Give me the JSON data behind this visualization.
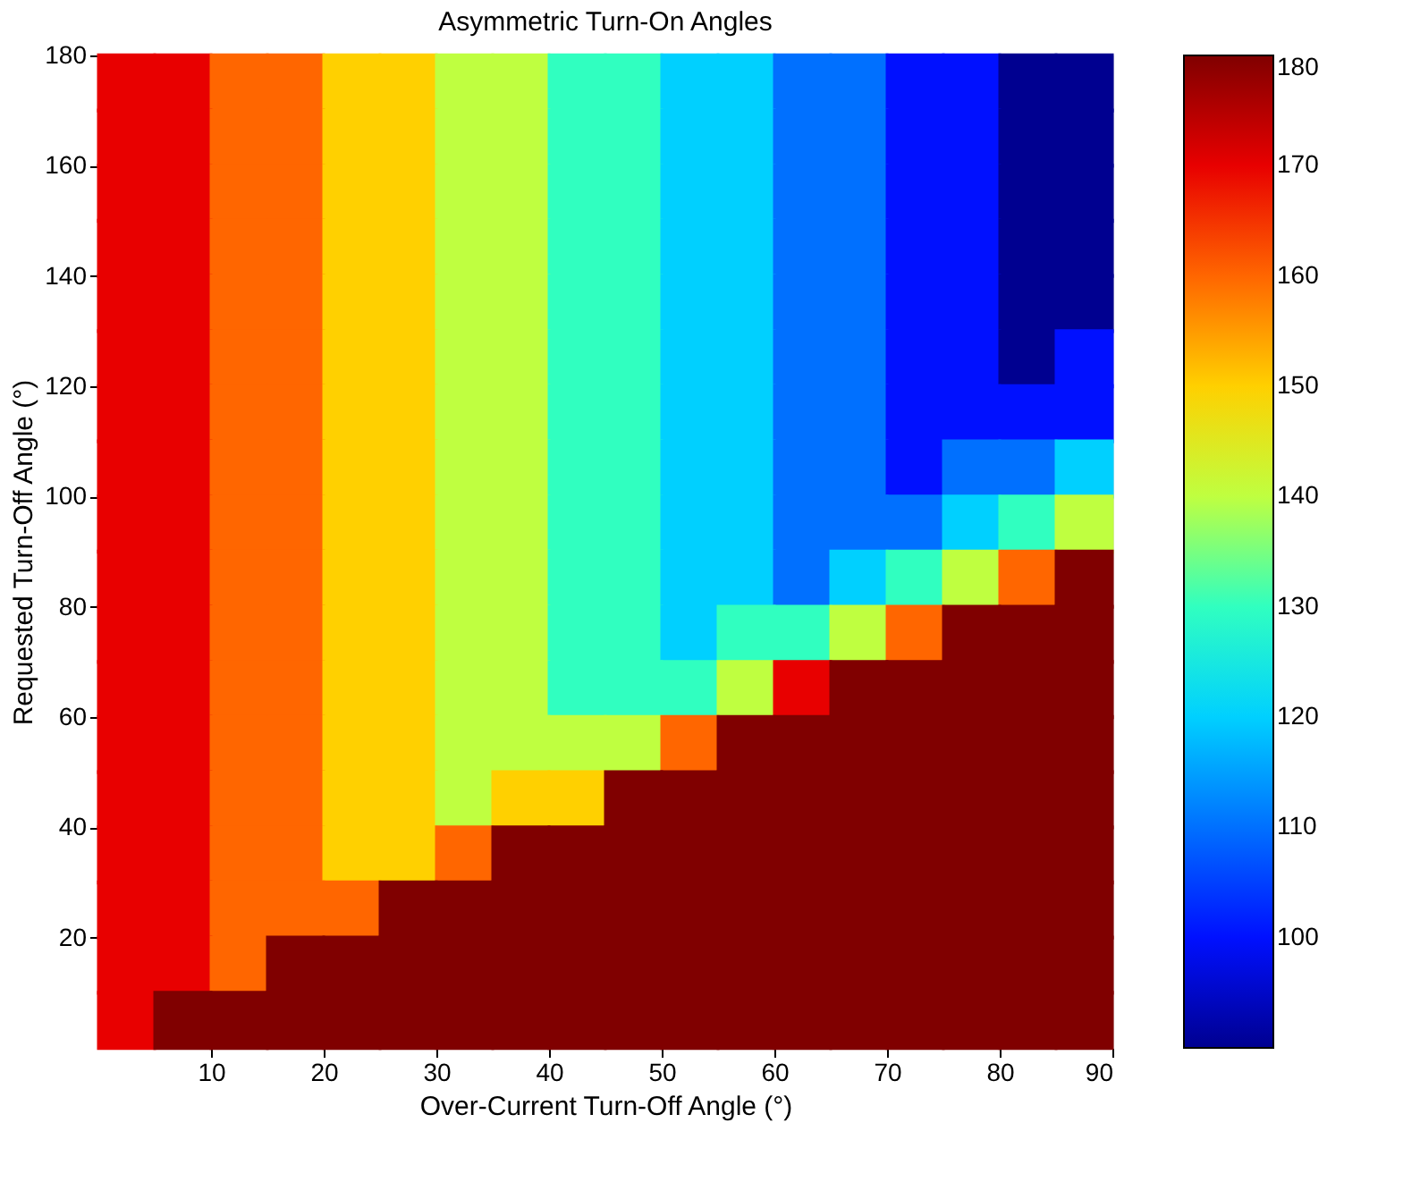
{
  "chart_data": {
    "type": "scatter",
    "title": "Asymmetric Turn-On Angles",
    "xlabel": "Over-Current Turn-Off Angle (°)",
    "ylabel": "Requested Turn-Off Angle (°)",
    "x": [
      2.5,
      7.5,
      12.5,
      17.5,
      22.5,
      27.5,
      32.5,
      37.5,
      42.5,
      47.5,
      52.5,
      57.5,
      62.5,
      67.5,
      72.5,
      77.5,
      82.5,
      87.5
    ],
    "marker": "square",
    "series": [
      {
        "values": [
          175,
          175,
          175,
          175,
          175,
          175,
          175,
          175,
          175,
          175,
          175,
          175,
          175,
          175,
          175,
          175,
          175,
          175
        ],
        "cvalues": [
          170,
          170,
          160,
          160,
          150,
          150,
          140,
          140,
          130,
          130,
          120,
          120,
          110,
          110,
          100,
          100,
          90,
          90
        ],
        "colors": [
          "#e80000",
          "#e80000",
          "#ff6600",
          "#ff6600",
          "#ffd000",
          "#ffd000",
          "#bfff40",
          "#bfff40",
          "#30ffc0",
          "#30ffc0",
          "#00d0ff",
          "#00d0ff",
          "#0070ff",
          "#0070ff",
          "#0010ff",
          "#0010ff",
          "#000090",
          "#000090"
        ]
      },
      {
        "values": [
          165,
          165,
          165,
          165,
          165,
          165,
          165,
          165,
          165,
          165,
          165,
          165,
          165,
          165,
          165,
          165,
          165,
          165
        ],
        "cvalues": [
          170,
          170,
          160,
          160,
          150,
          150,
          140,
          140,
          130,
          130,
          120,
          120,
          110,
          110,
          100,
          100,
          90,
          90
        ],
        "colors": [
          "#e80000",
          "#e80000",
          "#ff6600",
          "#ff6600",
          "#ffd000",
          "#ffd000",
          "#bfff40",
          "#bfff40",
          "#30ffc0",
          "#30ffc0",
          "#00d0ff",
          "#00d0ff",
          "#0070ff",
          "#0070ff",
          "#0010ff",
          "#0010ff",
          "#000090",
          "#000090"
        ]
      },
      {
        "values": [
          155,
          155,
          155,
          155,
          155,
          155,
          155,
          155,
          155,
          155,
          155,
          155,
          155,
          155,
          155,
          155,
          155,
          155
        ],
        "cvalues": [
          170,
          170,
          160,
          160,
          150,
          150,
          140,
          140,
          130,
          130,
          120,
          120,
          110,
          110,
          100,
          100,
          90,
          90
        ],
        "colors": [
          "#e80000",
          "#e80000",
          "#ff6600",
          "#ff6600",
          "#ffd000",
          "#ffd000",
          "#bfff40",
          "#bfff40",
          "#30ffc0",
          "#30ffc0",
          "#00d0ff",
          "#00d0ff",
          "#0070ff",
          "#0070ff",
          "#0010ff",
          "#0010ff",
          "#000090",
          "#000090"
        ]
      },
      {
        "values": [
          145,
          145,
          145,
          145,
          145,
          145,
          145,
          145,
          145,
          145,
          145,
          145,
          145,
          145,
          145,
          145,
          145,
          145
        ],
        "cvalues": [
          170,
          170,
          160,
          160,
          150,
          150,
          140,
          140,
          130,
          130,
          120,
          120,
          110,
          110,
          100,
          100,
          90,
          90
        ],
        "colors": [
          "#e80000",
          "#e80000",
          "#ff6600",
          "#ff6600",
          "#ffd000",
          "#ffd000",
          "#bfff40",
          "#bfff40",
          "#30ffc0",
          "#30ffc0",
          "#00d0ff",
          "#00d0ff",
          "#0070ff",
          "#0070ff",
          "#0010ff",
          "#0010ff",
          "#000090",
          "#000090"
        ]
      },
      {
        "values": [
          135,
          135,
          135,
          135,
          135,
          135,
          135,
          135,
          135,
          135,
          135,
          135,
          135,
          135,
          135,
          135,
          135,
          135
        ],
        "cvalues": [
          170,
          170,
          160,
          160,
          150,
          150,
          140,
          140,
          130,
          130,
          120,
          120,
          110,
          110,
          100,
          100,
          90,
          90
        ],
        "colors": [
          "#e80000",
          "#e80000",
          "#ff6600",
          "#ff6600",
          "#ffd000",
          "#ffd000",
          "#bfff40",
          "#bfff40",
          "#30ffc0",
          "#30ffc0",
          "#00d0ff",
          "#00d0ff",
          "#0070ff",
          "#0070ff",
          "#0010ff",
          "#0010ff",
          "#000090",
          "#000090"
        ]
      },
      {
        "values": [
          125,
          125,
          125,
          125,
          125,
          125,
          125,
          125,
          125,
          125,
          125,
          125,
          125,
          125,
          125,
          125,
          125,
          125
        ],
        "cvalues": [
          170,
          170,
          160,
          160,
          150,
          150,
          140,
          140,
          130,
          130,
          120,
          120,
          110,
          110,
          100,
          100,
          90,
          100
        ],
        "colors": [
          "#e80000",
          "#e80000",
          "#ff6600",
          "#ff6600",
          "#ffd000",
          "#ffd000",
          "#bfff40",
          "#bfff40",
          "#30ffc0",
          "#30ffc0",
          "#00d0ff",
          "#00d0ff",
          "#0070ff",
          "#0070ff",
          "#0010ff",
          "#0010ff",
          "#000090",
          "#0010ff"
        ]
      },
      {
        "values": [
          115,
          115,
          115,
          115,
          115,
          115,
          115,
          115,
          115,
          115,
          115,
          115,
          115,
          115,
          115,
          115,
          115,
          115
        ],
        "cvalues": [
          170,
          170,
          160,
          160,
          150,
          150,
          140,
          140,
          130,
          130,
          120,
          120,
          110,
          110,
          100,
          100,
          100,
          100
        ],
        "colors": [
          "#e80000",
          "#e80000",
          "#ff6600",
          "#ff6600",
          "#ffd000",
          "#ffd000",
          "#bfff40",
          "#bfff40",
          "#30ffc0",
          "#30ffc0",
          "#00d0ff",
          "#00d0ff",
          "#0070ff",
          "#0070ff",
          "#0010ff",
          "#0010ff",
          "#0010ff",
          "#0010ff"
        ]
      },
      {
        "values": [
          105,
          105,
          105,
          105,
          105,
          105,
          105,
          105,
          105,
          105,
          105,
          105,
          105,
          105,
          105,
          105,
          105,
          105
        ],
        "cvalues": [
          170,
          170,
          160,
          160,
          150,
          150,
          140,
          140,
          130,
          130,
          120,
          120,
          110,
          110,
          100,
          110,
          110,
          120
        ],
        "colors": [
          "#e80000",
          "#e80000",
          "#ff6600",
          "#ff6600",
          "#ffd000",
          "#ffd000",
          "#bfff40",
          "#bfff40",
          "#30ffc0",
          "#30ffc0",
          "#00d0ff",
          "#00d0ff",
          "#0070ff",
          "#0070ff",
          "#0010ff",
          "#0070ff",
          "#0070ff",
          "#00d0ff"
        ]
      },
      {
        "values": [
          95,
          95,
          95,
          95,
          95,
          95,
          95,
          95,
          95,
          95,
          95,
          95,
          95,
          95,
          95,
          95,
          95,
          95
        ],
        "cvalues": [
          170,
          170,
          160,
          160,
          150,
          150,
          140,
          140,
          130,
          130,
          120,
          120,
          110,
          110,
          110,
          120,
          130,
          140
        ],
        "colors": [
          "#e80000",
          "#e80000",
          "#ff6600",
          "#ff6600",
          "#ffd000",
          "#ffd000",
          "#bfff40",
          "#bfff40",
          "#30ffc0",
          "#30ffc0",
          "#00d0ff",
          "#00d0ff",
          "#0070ff",
          "#0070ff",
          "#0070ff",
          "#00d0ff",
          "#30ffc0",
          "#bfff40"
        ]
      },
      {
        "values": [
          85,
          85,
          85,
          85,
          85,
          85,
          85,
          85,
          85,
          85,
          85,
          85,
          85,
          85,
          85,
          85,
          85,
          85
        ],
        "cvalues": [
          170,
          170,
          160,
          160,
          150,
          150,
          140,
          140,
          130,
          130,
          120,
          120,
          110,
          120,
          130,
          140,
          160,
          180
        ],
        "colors": [
          "#e80000",
          "#e80000",
          "#ff6600",
          "#ff6600",
          "#ffd000",
          "#ffd000",
          "#bfff40",
          "#bfff40",
          "#30ffc0",
          "#30ffc0",
          "#00d0ff",
          "#00d0ff",
          "#0070ff",
          "#00d0ff",
          "#30ffc0",
          "#bfff40",
          "#ff6600",
          "#800000"
        ]
      },
      {
        "values": [
          75,
          75,
          75,
          75,
          75,
          75,
          75,
          75,
          75,
          75,
          75,
          75,
          75,
          75,
          75,
          75,
          75,
          75
        ],
        "cvalues": [
          170,
          170,
          160,
          160,
          150,
          150,
          140,
          140,
          130,
          130,
          120,
          130,
          130,
          140,
          160,
          180,
          180,
          180
        ],
        "colors": [
          "#e80000",
          "#e80000",
          "#ff6600",
          "#ff6600",
          "#ffd000",
          "#ffd000",
          "#bfff40",
          "#bfff40",
          "#30ffc0",
          "#30ffc0",
          "#00d0ff",
          "#30ffc0",
          "#30ffc0",
          "#bfff40",
          "#ff6600",
          "#800000",
          "#800000",
          "#800000"
        ]
      },
      {
        "values": [
          65,
          65,
          65,
          65,
          65,
          65,
          65,
          65,
          65,
          65,
          65,
          65,
          65,
          65,
          65,
          65,
          65,
          65
        ],
        "cvalues": [
          170,
          170,
          160,
          160,
          150,
          150,
          140,
          140,
          130,
          130,
          130,
          140,
          170,
          180,
          180,
          180,
          180,
          180
        ],
        "colors": [
          "#e80000",
          "#e80000",
          "#ff6600",
          "#ff6600",
          "#ffd000",
          "#ffd000",
          "#bfff40",
          "#bfff40",
          "#30ffc0",
          "#30ffc0",
          "#30ffc0",
          "#bfff40",
          "#e80000",
          "#800000",
          "#800000",
          "#800000",
          "#800000",
          "#800000"
        ]
      },
      {
        "values": [
          55,
          55,
          55,
          55,
          55,
          55,
          55,
          55,
          55,
          55,
          55,
          55,
          55,
          55,
          55,
          55,
          55,
          55
        ],
        "cvalues": [
          170,
          170,
          160,
          160,
          150,
          150,
          140,
          140,
          140,
          140,
          160,
          180,
          180,
          180,
          180,
          180,
          180,
          180
        ],
        "colors": [
          "#e80000",
          "#e80000",
          "#ff6600",
          "#ff6600",
          "#ffd000",
          "#ffd000",
          "#bfff40",
          "#bfff40",
          "#bfff40",
          "#bfff40",
          "#ff6600",
          "#800000",
          "#800000",
          "#800000",
          "#800000",
          "#800000",
          "#800000",
          "#800000"
        ]
      },
      {
        "values": [
          45,
          45,
          45,
          45,
          45,
          45,
          45,
          45,
          45,
          45,
          45,
          45,
          45,
          45,
          45,
          45,
          45,
          45
        ],
        "cvalues": [
          170,
          170,
          160,
          160,
          150,
          150,
          140,
          150,
          150,
          180,
          180,
          180,
          180,
          180,
          180,
          180,
          180,
          180
        ],
        "colors": [
          "#e80000",
          "#e80000",
          "#ff6600",
          "#ff6600",
          "#ffd000",
          "#ffd000",
          "#bfff40",
          "#ffd000",
          "#ffd000",
          "#800000",
          "#800000",
          "#800000",
          "#800000",
          "#800000",
          "#800000",
          "#800000",
          "#800000",
          "#800000"
        ]
      },
      {
        "values": [
          35,
          35,
          35,
          35,
          35,
          35,
          35,
          35,
          35,
          35,
          35,
          35,
          35,
          35,
          35,
          35,
          35,
          35
        ],
        "cvalues": [
          170,
          170,
          160,
          160,
          150,
          150,
          160,
          180,
          180,
          180,
          180,
          180,
          180,
          180,
          180,
          180,
          180,
          180
        ],
        "colors": [
          "#e80000",
          "#e80000",
          "#ff6600",
          "#ff6600",
          "#ffd000",
          "#ffd000",
          "#ff6600",
          "#800000",
          "#800000",
          "#800000",
          "#800000",
          "#800000",
          "#800000",
          "#800000",
          "#800000",
          "#800000",
          "#800000",
          "#800000"
        ]
      },
      {
        "values": [
          25,
          25,
          25,
          25,
          25,
          25,
          25,
          25,
          25,
          25,
          25,
          25,
          25,
          25,
          25,
          25,
          25,
          25
        ],
        "cvalues": [
          170,
          170,
          160,
          160,
          160,
          180,
          180,
          180,
          180,
          180,
          180,
          180,
          180,
          180,
          180,
          180,
          180,
          180
        ],
        "colors": [
          "#e80000",
          "#e80000",
          "#ff6600",
          "#ff6600",
          "#ff6600",
          "#800000",
          "#800000",
          "#800000",
          "#800000",
          "#800000",
          "#800000",
          "#800000",
          "#800000",
          "#800000",
          "#800000",
          "#800000",
          "#800000",
          "#800000"
        ]
      },
      {
        "values": [
          15,
          15,
          15,
          15,
          15,
          15,
          15,
          15,
          15,
          15,
          15,
          15,
          15,
          15,
          15,
          15,
          15,
          15
        ],
        "cvalues": [
          170,
          170,
          160,
          180,
          180,
          180,
          180,
          180,
          180,
          180,
          180,
          180,
          180,
          180,
          180,
          180,
          180,
          180
        ],
        "colors": [
          "#e80000",
          "#e80000",
          "#ff6600",
          "#800000",
          "#800000",
          "#800000",
          "#800000",
          "#800000",
          "#800000",
          "#800000",
          "#800000",
          "#800000",
          "#800000",
          "#800000",
          "#800000",
          "#800000",
          "#800000",
          "#800000"
        ]
      },
      {
        "values": [
          5,
          5,
          5,
          5,
          5,
          5,
          5,
          5,
          5,
          5,
          5,
          5,
          5,
          5,
          5,
          5,
          5,
          5
        ],
        "cvalues": [
          170,
          180,
          180,
          180,
          180,
          180,
          180,
          180,
          180,
          180,
          180,
          180,
          180,
          180,
          180,
          180,
          180,
          180
        ],
        "colors": [
          "#e80000",
          "#800000",
          "#800000",
          "#800000",
          "#800000",
          "#800000",
          "#800000",
          "#800000",
          "#800000",
          "#800000",
          "#800000",
          "#800000",
          "#800000",
          "#800000",
          "#800000",
          "#800000",
          "#800000",
          "#800000"
        ]
      }
    ],
    "xlim": [
      0,
      90
    ],
    "xticks": [
      10,
      20,
      30,
      40,
      50,
      60,
      70,
      80,
      90
    ],
    "ylim": [
      0,
      180
    ],
    "yticks": [
      20,
      40,
      60,
      80,
      100,
      120,
      140,
      160,
      180
    ],
    "clim": [
      90,
      180
    ],
    "cticks": [
      100,
      110,
      120,
      130,
      140,
      150,
      160,
      170,
      180
    ]
  }
}
